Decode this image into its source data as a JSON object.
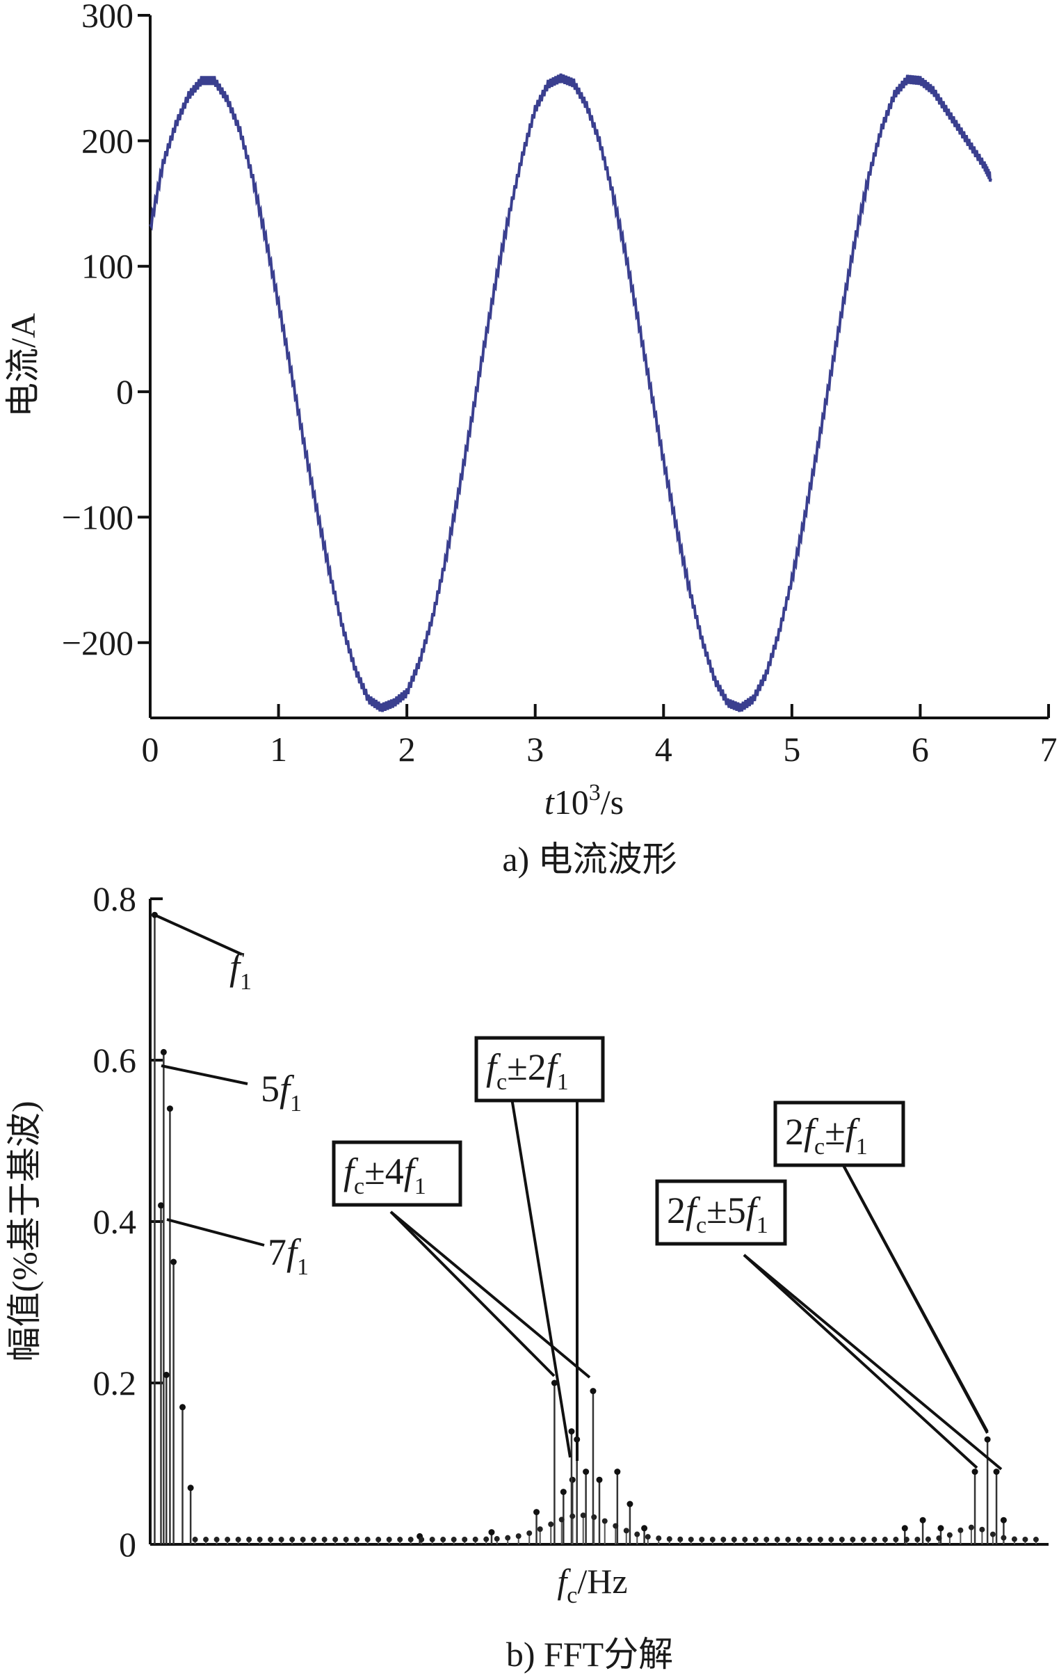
{
  "chart_data": [
    {
      "type": "line",
      "caption": "a) 电流波形",
      "ylabel": "电流/A",
      "xlabel_parts": [
        "t",
        "10",
        "3",
        "/s"
      ],
      "xlim": [
        0,
        7
      ],
      "ylim": [
        -260,
        300
      ],
      "xticks": [
        "0",
        "1",
        "2",
        "3",
        "4",
        "5",
        "6",
        "7"
      ],
      "yticks": [
        "300",
        "200",
        "100",
        "0",
        "−100",
        "−200"
      ],
      "series": [
        {
          "color": "#3a3f8f",
          "x": [
            0,
            0.1,
            0.2,
            0.3,
            0.4,
            0.5,
            0.6,
            0.7,
            0.8,
            0.9,
            1.0,
            1.1,
            1.2,
            1.3,
            1.4,
            1.5,
            1.6,
            1.7,
            1.8,
            1.9,
            2.0,
            2.1,
            2.2,
            2.3,
            2.4,
            2.5,
            2.6,
            2.7,
            2.8,
            2.9,
            3.0,
            3.1,
            3.2,
            3.3,
            3.4,
            3.5,
            3.6,
            3.7,
            3.8,
            3.9,
            4.0,
            4.1,
            4.2,
            4.3,
            4.4,
            4.5,
            4.6,
            4.7,
            4.8,
            4.9,
            5.0,
            5.1,
            5.2,
            5.3,
            5.4,
            5.5,
            5.6,
            5.7,
            5.8,
            5.9,
            6.0,
            6.1,
            6.2,
            6.3,
            6.4,
            6.5,
            6.55
          ],
          "y": [
            130,
            182,
            213,
            236,
            248,
            248,
            233,
            208,
            170,
            122,
            70,
            15,
            -42,
            -95,
            -145,
            -188,
            -222,
            -245,
            -252,
            -248,
            -240,
            -215,
            -180,
            -135,
            -82,
            -25,
            35,
            92,
            143,
            188,
            225,
            245,
            250,
            246,
            228,
            200,
            160,
            112,
            58,
            2,
            -55,
            -108,
            -157,
            -198,
            -230,
            -248,
            -252,
            -245,
            -225,
            -192,
            -150,
            -100,
            -45,
            12,
            70,
            125,
            172,
            210,
            237,
            249,
            248,
            240,
            225,
            210,
            195,
            180,
            170
          ]
        }
      ]
    },
    {
      "type": "bar",
      "caption": "b) FFT分解",
      "ylabel": "幅值(%基于基波)",
      "xlabel_parts": [
        "f",
        "c",
        "/Hz"
      ],
      "ylim": [
        0,
        0.8
      ],
      "yticks": [
        "0.8",
        "0.6",
        "0.4",
        "0.2",
        "0"
      ],
      "x_scale": "frequency (unlabeled ticks)",
      "annotations": [
        {
          "parts": [
            {
              "t": "f",
              "i": true
            },
            {
              "t": "1",
              "s": true
            }
          ],
          "boxed": false
        },
        {
          "parts": [
            {
              "t": "5"
            },
            {
              "t": "f",
              "i": true
            },
            {
              "t": "1",
              "s": true
            }
          ],
          "boxed": false
        },
        {
          "parts": [
            {
              "t": "7"
            },
            {
              "t": "f",
              "i": true
            },
            {
              "t": "1",
              "s": true
            }
          ],
          "boxed": false
        },
        {
          "parts": [
            {
              "t": "f",
              "i": true
            },
            {
              "t": "c",
              "s": true
            },
            {
              "t": "±4"
            },
            {
              "t": "f",
              "i": true
            },
            {
              "t": "1",
              "s": true
            }
          ],
          "boxed": true
        },
        {
          "parts": [
            {
              "t": "f",
              "i": true
            },
            {
              "t": "c",
              "s": true
            },
            {
              "t": "±2"
            },
            {
              "t": "f",
              "i": true
            },
            {
              "t": "1",
              "s": true
            }
          ],
          "boxed": true
        },
        {
          "parts": [
            {
              "t": "2"
            },
            {
              "t": "f",
              "i": true
            },
            {
              "t": "c",
              "s": true
            },
            {
              "t": "±5"
            },
            {
              "t": "f",
              "i": true
            },
            {
              "t": "1",
              "s": true
            }
          ],
          "boxed": true
        },
        {
          "parts": [
            {
              "t": "2"
            },
            {
              "t": "f",
              "i": true
            },
            {
              "t": "c",
              "s": true
            },
            {
              "t": "±"
            },
            {
              "t": "f",
              "i": true
            },
            {
              "t": "1",
              "s": true
            }
          ],
          "boxed": true
        }
      ],
      "bars": [
        {
          "x": 0.005,
          "y": 0.78
        },
        {
          "x": 0.015,
          "y": 0.61
        },
        {
          "x": 0.022,
          "y": 0.54
        },
        {
          "x": 0.012,
          "y": 0.42
        },
        {
          "x": 0.026,
          "y": 0.35
        },
        {
          "x": 0.018,
          "y": 0.21
        },
        {
          "x": 0.036,
          "y": 0.17
        },
        {
          "x": 0.045,
          "y": 0.07
        },
        {
          "x": 0.3,
          "y": 0.01
        },
        {
          "x": 0.38,
          "y": 0.015
        },
        {
          "x": 0.43,
          "y": 0.04
        },
        {
          "x": 0.46,
          "y": 0.065
        },
        {
          "x": 0.47,
          "y": 0.08
        },
        {
          "x": 0.485,
          "y": 0.09
        },
        {
          "x": 0.5,
          "y": 0.08
        },
        {
          "x": 0.52,
          "y": 0.09
        },
        {
          "x": 0.534,
          "y": 0.05
        },
        {
          "x": 0.55,
          "y": 0.02
        },
        {
          "x": 0.45,
          "y": 0.2
        },
        {
          "x": 0.469,
          "y": 0.14
        },
        {
          "x": 0.475,
          "y": 0.13
        },
        {
          "x": 0.493,
          "y": 0.19
        },
        {
          "x": 0.84,
          "y": 0.02
        },
        {
          "x": 0.86,
          "y": 0.03
        },
        {
          "x": 0.88,
          "y": 0.02
        },
        {
          "x": 0.918,
          "y": 0.09
        },
        {
          "x": 0.932,
          "y": 0.13
        },
        {
          "x": 0.942,
          "y": 0.09
        },
        {
          "x": 0.95,
          "y": 0.03
        }
      ]
    }
  ]
}
